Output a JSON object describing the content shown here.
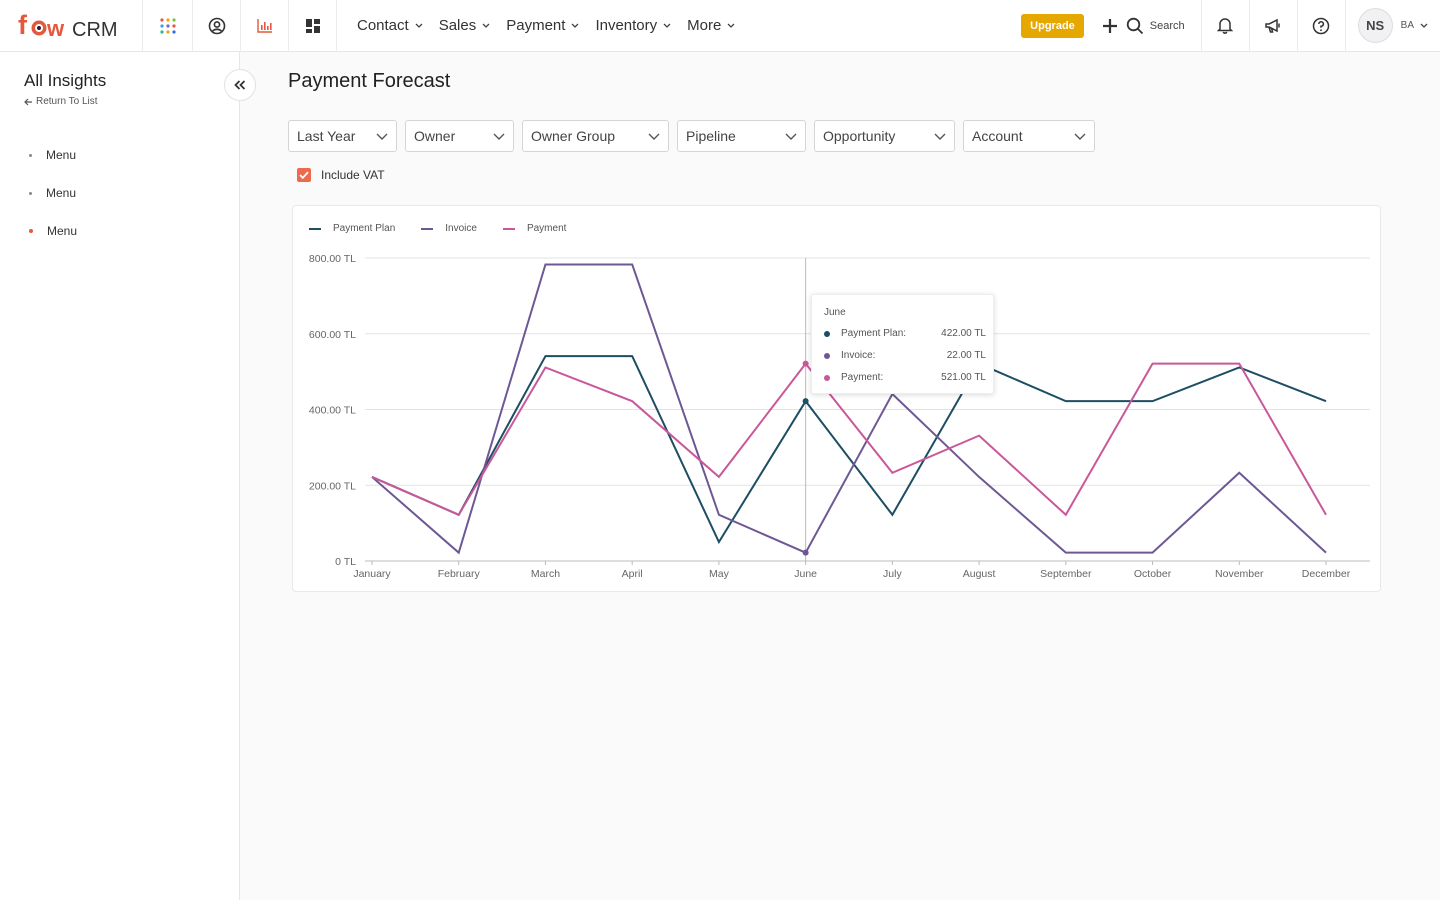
{
  "brand": {
    "logo_text_a": "fow",
    "logo_text_b": "CRM"
  },
  "topnav": {
    "icons": [
      "apps-grid-icon",
      "user-circle-icon",
      "analytics-icon",
      "dashboard-icon"
    ],
    "items": [
      {
        "label": "Contact"
      },
      {
        "label": "Sales"
      },
      {
        "label": "Payment"
      },
      {
        "label": "Inventory"
      },
      {
        "label": "More"
      }
    ],
    "upgrade_label": "Upgrade",
    "search_label": "Search",
    "user_initials": "NS",
    "user_short": "BA"
  },
  "sidebar": {
    "title": "All Insights",
    "back_label": "Return To List",
    "items": [
      {
        "label": "Menu",
        "active": false
      },
      {
        "label": "Menu",
        "active": false
      },
      {
        "label": "Menu",
        "active": true
      }
    ]
  },
  "page": {
    "title": "Payment Forecast",
    "filters": [
      "Last Year",
      "Owner",
      "Owner Group",
      "Pipeline",
      "Opportunity",
      "Account"
    ],
    "vat_label": "Include VAT",
    "vat_checked": true
  },
  "chart_data": {
    "type": "line",
    "categories": [
      "January",
      "February",
      "March",
      "April",
      "May",
      "June",
      "July",
      "August",
      "September",
      "October",
      "November",
      "December"
    ],
    "ylim": [
      0,
      800
    ],
    "yticks": [
      0,
      200,
      400,
      600,
      800
    ],
    "ytick_labels": [
      "0 TL",
      "200.00 TL",
      "400.00 TL",
      "600.00 TL",
      "800.00 TL"
    ],
    "grid": true,
    "legend_position": "top-left",
    "series": [
      {
        "name": "Payment Plan",
        "color": "#1d4e63",
        "values": [
          222,
          122,
          541,
          541,
          50,
          422,
          122,
          521,
          422,
          422,
          511,
          422
        ]
      },
      {
        "name": "Invoice",
        "color": "#6e5894",
        "values": [
          222,
          22,
          783,
          783,
          122,
          22,
          441,
          222,
          22,
          22,
          233,
          22
        ]
      },
      {
        "name": "Payment",
        "color": "#c9589a",
        "values": [
          222,
          122,
          511,
          422,
          222,
          521,
          233,
          331,
          122,
          521,
          521,
          122
        ]
      }
    ],
    "tooltip": {
      "title": "June",
      "rows": [
        {
          "label": "Payment Plan:",
          "value": "422.00 TL",
          "color": "#1d4e63"
        },
        {
          "label": "Invoice:",
          "value": "22.00 TL",
          "color": "#6e5894"
        },
        {
          "label": "Payment:",
          "value": "521.00 TL",
          "color": "#c9589a"
        }
      ]
    }
  }
}
